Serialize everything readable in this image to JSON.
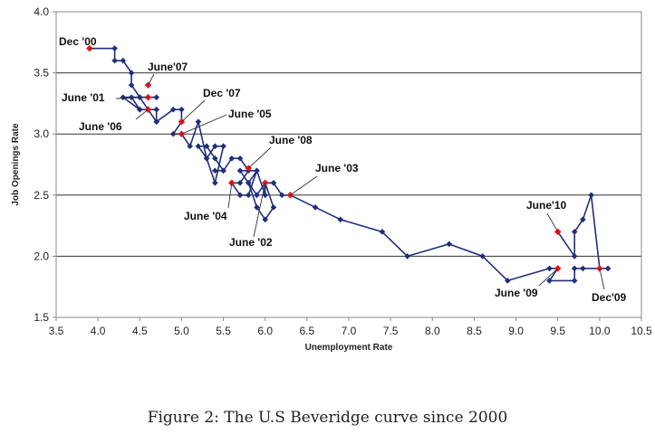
{
  "caption": "Figure 2: The U.S Beveridge curve since 2000",
  "chart_data": {
    "type": "line",
    "title": "",
    "xlabel": "Unemployment Rate",
    "ylabel": "Job Openings Rate",
    "xlim": [
      3.5,
      10.5
    ],
    "ylim": [
      1.5,
      4.0
    ],
    "x_ticks": [
      3.5,
      4.0,
      4.5,
      5.0,
      5.5,
      6.0,
      6.5,
      7.0,
      7.5,
      8.0,
      8.5,
      9.0,
      9.5,
      10.0,
      10.5
    ],
    "y_ticks": [
      1.5,
      2.0,
      2.5,
      3.0,
      3.5,
      4.0
    ],
    "grid": "horizontal",
    "colors": {
      "line": "#1f2f7a",
      "highlight": "#e8141e",
      "grid": "#333333"
    },
    "series": [
      {
        "x": [
          3.9,
          4.2,
          4.2,
          4.3,
          4.4,
          4.4,
          4.5,
          4.6,
          4.7,
          4.4,
          4.5,
          4.6,
          4.7,
          4.7,
          4.6,
          4.5,
          4.3,
          4.5,
          4.6,
          4.7,
          4.9,
          5.0,
          5.0,
          4.9,
          5.0,
          5.1,
          5.2,
          5.3,
          5.4,
          5.5,
          5.4,
          5.3,
          5.2,
          5.3,
          5.4,
          5.5,
          5.4,
          5.5,
          5.6,
          5.7,
          5.8,
          5.7,
          5.6,
          5.7,
          5.8,
          5.9,
          5.8,
          5.9,
          6.0,
          6.1,
          6.0,
          5.9,
          5.8,
          5.7,
          5.9,
          6.0,
          6.0,
          6.1,
          6.2,
          6.3,
          6.6,
          6.9,
          7.4,
          7.7,
          8.2,
          8.6,
          8.9,
          9.4,
          9.5,
          9.4,
          9.7,
          9.7,
          9.8,
          10.1,
          10.0,
          9.9,
          9.8,
          9.7,
          9.7,
          9.5
        ],
        "y": [
          3.7,
          3.7,
          3.6,
          3.6,
          3.5,
          3.4,
          3.3,
          3.3,
          3.3,
          3.3,
          3.2,
          3.2,
          3.1,
          3.2,
          3.2,
          3.3,
          3.3,
          3.2,
          3.2,
          3.1,
          3.2,
          3.2,
          3.1,
          3.0,
          3.0,
          2.9,
          3.1,
          2.8,
          2.9,
          2.9,
          2.6,
          2.8,
          2.9,
          2.9,
          2.8,
          2.7,
          2.7,
          2.7,
          2.8,
          2.8,
          2.7,
          2.6,
          2.6,
          2.5,
          2.5,
          2.7,
          2.6,
          2.4,
          2.3,
          2.4,
          2.6,
          2.5,
          2.6,
          2.7,
          2.7,
          2.5,
          2.6,
          2.6,
          2.5,
          2.5,
          2.4,
          2.3,
          2.2,
          2.0,
          2.1,
          2.0,
          1.8,
          1.9,
          1.9,
          1.8,
          1.8,
          1.9,
          1.9,
          1.9,
          1.9,
          2.5,
          2.3,
          2.2,
          2.0,
          2.2
        ]
      }
    ],
    "highlighted_points": [
      {
        "x": 3.9,
        "y": 3.7
      },
      {
        "x": 4.6,
        "y": 3.4
      },
      {
        "x": 4.6,
        "y": 3.3
      },
      {
        "x": 4.6,
        "y": 3.2
      },
      {
        "x": 5.0,
        "y": 3.1
      },
      {
        "x": 5.0,
        "y": 3.0
      },
      {
        "x": 5.8,
        "y": 2.72
      },
      {
        "x": 5.6,
        "y": 2.6
      },
      {
        "x": 6.0,
        "y": 2.6
      },
      {
        "x": 6.3,
        "y": 2.5
      },
      {
        "x": 9.5,
        "y": 2.2
      },
      {
        "x": 9.5,
        "y": 1.9
      },
      {
        "x": 10.0,
        "y": 1.9
      }
    ],
    "annotations": [
      {
        "text": "Dec '00",
        "x": 3.9,
        "y": 3.7
      },
      {
        "text": "June'07",
        "x": 4.6,
        "y": 3.4
      },
      {
        "text": "June '01",
        "x": 4.6,
        "y": 3.3
      },
      {
        "text": "Dec '07",
        "x": 5.0,
        "y": 3.1
      },
      {
        "text": "June '05",
        "x": 5.0,
        "y": 3.0
      },
      {
        "text": "June '06",
        "x": 4.6,
        "y": 3.2
      },
      {
        "text": "June '08",
        "x": 5.8,
        "y": 2.72
      },
      {
        "text": "June '03",
        "x": 6.3,
        "y": 2.5
      },
      {
        "text": "June '04",
        "x": 5.6,
        "y": 2.6
      },
      {
        "text": "June '02",
        "x": 6.0,
        "y": 2.6
      },
      {
        "text": "June'10",
        "x": 9.5,
        "y": 2.2
      },
      {
        "text": "June '09",
        "x": 9.5,
        "y": 1.9
      },
      {
        "text": "Dec'09",
        "x": 10.0,
        "y": 1.9
      }
    ]
  }
}
